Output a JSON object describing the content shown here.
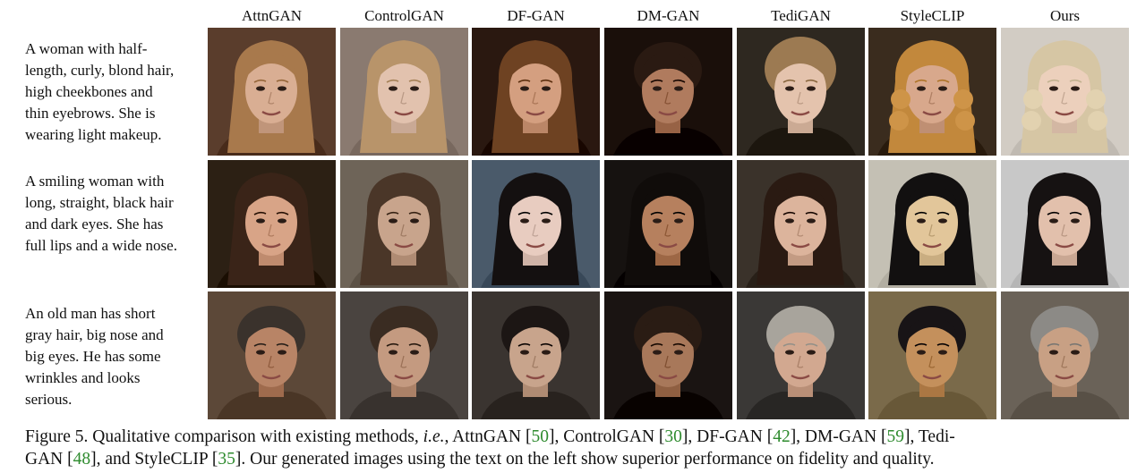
{
  "columns": [
    "AttnGAN",
    "ControlGAN",
    "DF-GAN",
    "DM-GAN",
    "TediGAN",
    "StyleCLIP",
    "Ours"
  ],
  "rows": [
    {
      "lines": [
        "A woman with  half-",
        "length, curly, blond hair,",
        "high cheekbones and",
        "thin eyebrows. She is",
        "wearing light makeup."
      ],
      "tiles": [
        {
          "bg": "#5a3d2c",
          "hair": "#a8794c",
          "skin": "#d9ae93",
          "style": "long"
        },
        {
          "bg": "#8a7a70",
          "hair": "#b8946a",
          "skin": "#e2c2ae",
          "style": "long"
        },
        {
          "bg": "#2a1810",
          "hair": "#6e4222",
          "skin": "#d49f80",
          "style": "long"
        },
        {
          "bg": "#1a0f0a",
          "hair": "#2a1a12",
          "skin": "#b07b5e",
          "style": "bangs"
        },
        {
          "bg": "#2e2820",
          "hair": "#9c7a52",
          "skin": "#e4c3ad",
          "style": "tied"
        },
        {
          "bg": "#3a2c1e",
          "hair": "#c2883c",
          "skin": "#d8a88c",
          "style": "curly"
        },
        {
          "bg": "#d2ccc4",
          "hair": "#d6c6a4",
          "skin": "#ecd0bc",
          "style": "curly"
        }
      ]
    },
    {
      "lines": [
        "A smiling woman with",
        "long, straight, black hair",
        "and dark eyes. She has",
        "full lips and a wide nose."
      ],
      "tiles": [
        {
          "bg": "#2c2014",
          "hair": "#3a2418",
          "skin": "#d8a487",
          "style": "long"
        },
        {
          "bg": "#6e6458",
          "hair": "#4a3628",
          "skin": "#c8a48c",
          "style": "long"
        },
        {
          "bg": "#4a5a6a",
          "hair": "#141010",
          "skin": "#e8ccc0",
          "style": "long"
        },
        {
          "bg": "#161210",
          "hair": "#100c0a",
          "skin": "#b6805e",
          "style": "long"
        },
        {
          "bg": "#3a322a",
          "hair": "#2a1a12",
          "skin": "#dcb49c",
          "style": "long"
        },
        {
          "bg": "#c4c0b4",
          "hair": "#121010",
          "skin": "#e2c69a",
          "style": "long"
        },
        {
          "bg": "#c8c8c8",
          "hair": "#161212",
          "skin": "#e2c0ac",
          "style": "long"
        }
      ]
    },
    {
      "lines": [
        "An old man has short",
        "gray hair, big nose and",
        "big eyes. He has some",
        "wrinkles and looks",
        "serious."
      ],
      "tiles": [
        {
          "bg": "#5c4838",
          "hair": "#3a322c",
          "skin": "#b88466",
          "style": "short"
        },
        {
          "bg": "#4a4440",
          "hair": "#3a2c22",
          "skin": "#c49a80",
          "style": "short"
        },
        {
          "bg": "#3a3430",
          "hair": "#1c1614",
          "skin": "#c8a48c",
          "style": "short"
        },
        {
          "bg": "#1a1412",
          "hair": "#2a1c14",
          "skin": "#a8785a",
          "style": "bangs"
        },
        {
          "bg": "#3a3836",
          "hair": "#a8a49c",
          "skin": "#d2a890",
          "style": "bangs"
        },
        {
          "bg": "#7a6a4a",
          "hair": "#181416",
          "skin": "#c4905c",
          "style": "short"
        },
        {
          "bg": "#6a6258",
          "hair": "#8c8a86",
          "skin": "#c8a084",
          "style": "short"
        }
      ]
    }
  ],
  "caption": {
    "line1": [
      {
        "t": "Figure 5.  Qualitative comparison with existing methods, "
      },
      {
        "t": "i.e.",
        "italic": true
      },
      {
        "t": ", AttnGAN ["
      },
      {
        "t": "50",
        "ref": true
      },
      {
        "t": "], ControlGAN ["
      },
      {
        "t": "30",
        "ref": true
      },
      {
        "t": "], DF-GAN ["
      },
      {
        "t": "42",
        "ref": true
      },
      {
        "t": "], DM-GAN ["
      },
      {
        "t": "59",
        "ref": true
      },
      {
        "t": "], Tedi-"
      }
    ],
    "line2": [
      {
        "t": "GAN ["
      },
      {
        "t": "48",
        "ref": true
      },
      {
        "t": "], and StyleCLIP ["
      },
      {
        "t": "35",
        "ref": true
      },
      {
        "t": "]. Our generated images using the text on the left show superior performance on fidelity and quality."
      }
    ]
  }
}
